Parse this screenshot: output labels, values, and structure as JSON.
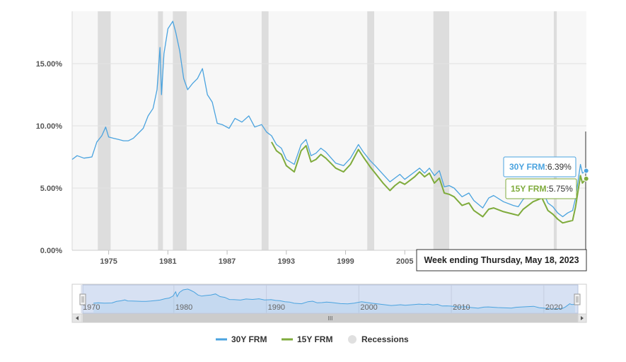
{
  "colors": {
    "series_30y": "#4aa3df",
    "series_15y": "#7fab3c",
    "recession": "#dddddd",
    "plot_bg": "#f7f7f7",
    "navigator_mask": "#d7e1f3"
  },
  "tooltip": {
    "header": "Week ending Thursday, May 18, 2023",
    "items": [
      {
        "name": "30Y FRM",
        "value": "6.39%",
        "color": "#4aa3df"
      },
      {
        "name": "15Y FRM",
        "value": "5.75%",
        "color": "#7fab3c"
      }
    ]
  },
  "legend": [
    {
      "name": "30Y FRM",
      "type": "line",
      "color": "#4aa3df"
    },
    {
      "name": "15Y FRM",
      "type": "line",
      "color": "#7fab3c"
    },
    {
      "name": "Recessions",
      "type": "dot",
      "color": "#e0e0e0"
    }
  ],
  "navigator": {
    "labels": [
      "1970",
      "1980",
      "1990",
      "2000",
      "2010",
      "2020"
    ],
    "scroll_grip": "III"
  },
  "chart_data": {
    "type": "line",
    "title": "",
    "xlabel": "",
    "ylabel": "",
    "xlim": [
      1971.3,
      2023.4
    ],
    "ylim": [
      0,
      19.2
    ],
    "x_ticks": [
      1975,
      1981,
      1987,
      1993,
      1999,
      2005
    ],
    "x_tick_labels": [
      "1975",
      "1981",
      "1987",
      "1993",
      "1999",
      "2005"
    ],
    "y_ticks": [
      0,
      5,
      10,
      15
    ],
    "y_tick_labels": [
      "0.00%",
      "5.00%",
      "10.00%",
      "15.00%"
    ],
    "grid": "horizontal",
    "recessions": [
      [
        1973.9,
        1975.2
      ],
      [
        1980.0,
        1980.5
      ],
      [
        1981.5,
        1982.9
      ],
      [
        1990.5,
        1991.2
      ],
      [
        2001.2,
        2001.9
      ],
      [
        2007.9,
        2009.5
      ],
      [
        2020.1,
        2020.4
      ]
    ],
    "series": [
      {
        "name": "30Y FRM",
        "x": [
          1971.3,
          1971.8,
          1972.5,
          1973.3,
          1973.8,
          1974.3,
          1974.7,
          1975.0,
          1975.5,
          1976.0,
          1976.5,
          1977.0,
          1977.5,
          1978.0,
          1978.5,
          1979.0,
          1979.5,
          1979.9,
          1980.2,
          1980.35,
          1980.6,
          1981.0,
          1981.5,
          1981.8,
          1982.2,
          1982.6,
          1983.0,
          1983.5,
          1984.0,
          1984.5,
          1985.0,
          1985.5,
          1986.0,
          1986.5,
          1987.2,
          1987.8,
          1988.5,
          1989.2,
          1989.8,
          1990.5,
          1991.0,
          1991.5,
          1992.0,
          1992.5,
          1993.0,
          1993.8,
          1994.5,
          1995.0,
          1995.5,
          1996.0,
          1996.5,
          1997.0,
          1998.0,
          1998.8,
          1999.5,
          2000.3,
          2000.8,
          2001.5,
          2002.0,
          2002.8,
          2003.5,
          2004.0,
          2004.5,
          2005.0,
          2006.0,
          2006.5,
          2007.0,
          2007.5,
          2008.0,
          2008.5,
          2009.0,
          2009.5,
          2010.0,
          2010.8,
          2011.5,
          2012.0,
          2012.9,
          2013.5,
          2014.0,
          2015.0,
          2016.0,
          2016.5,
          2017.0,
          2018.0,
          2018.9,
          2019.5,
          2020.0,
          2020.5,
          2021.0,
          2021.5,
          2022.0,
          2022.3,
          2022.8,
          2023.0,
          2023.38
        ],
        "values": [
          7.3,
          7.6,
          7.4,
          7.5,
          8.7,
          9.2,
          9.9,
          9.1,
          9.0,
          8.9,
          8.8,
          8.8,
          9.0,
          9.4,
          9.8,
          10.8,
          11.4,
          12.9,
          16.3,
          12.5,
          15.8,
          17.8,
          18.4,
          17.5,
          16.0,
          13.8,
          12.9,
          13.4,
          13.8,
          14.6,
          12.5,
          11.9,
          10.2,
          10.1,
          9.8,
          10.6,
          10.3,
          10.8,
          9.9,
          10.1,
          9.5,
          9.2,
          8.5,
          8.2,
          7.3,
          6.9,
          8.5,
          8.9,
          7.6,
          7.8,
          8.2,
          7.9,
          7.0,
          6.8,
          7.4,
          8.5,
          7.9,
          7.2,
          6.8,
          6.1,
          5.5,
          5.8,
          6.1,
          5.7,
          6.3,
          6.6,
          6.2,
          6.6,
          6.0,
          6.4,
          5.1,
          5.2,
          5.0,
          4.3,
          4.6,
          4.0,
          3.4,
          4.2,
          4.4,
          3.9,
          3.6,
          3.5,
          4.1,
          4.5,
          4.9,
          3.8,
          3.5,
          3.0,
          2.7,
          3.0,
          3.2,
          4.2,
          6.9,
          6.2,
          6.39
        ]
      },
      {
        "name": "15Y FRM",
        "x": [
          1991.5,
          1992.0,
          1992.5,
          1993.0,
          1993.8,
          1994.5,
          1995.0,
          1995.5,
          1996.0,
          1996.5,
          1997.0,
          1998.0,
          1998.8,
          1999.5,
          2000.3,
          2000.8,
          2001.5,
          2002.0,
          2002.8,
          2003.5,
          2004.0,
          2004.5,
          2005.0,
          2006.0,
          2006.5,
          2007.0,
          2007.5,
          2008.0,
          2008.5,
          2009.0,
          2009.5,
          2010.0,
          2010.8,
          2011.5,
          2012.0,
          2012.9,
          2013.5,
          2014.0,
          2015.0,
          2016.0,
          2016.5,
          2017.0,
          2018.0,
          2018.9,
          2019.5,
          2020.0,
          2020.5,
          2021.0,
          2021.5,
          2022.0,
          2022.3,
          2022.8,
          2023.0,
          2023.38
        ],
        "values": [
          8.7,
          8.0,
          7.7,
          6.8,
          6.3,
          8.0,
          8.4,
          7.1,
          7.3,
          7.7,
          7.4,
          6.6,
          6.3,
          6.9,
          8.1,
          7.5,
          6.7,
          6.2,
          5.4,
          4.8,
          5.2,
          5.5,
          5.3,
          5.9,
          6.3,
          5.9,
          6.2,
          5.4,
          5.8,
          4.6,
          4.5,
          4.3,
          3.6,
          3.8,
          3.2,
          2.7,
          3.3,
          3.4,
          3.1,
          2.9,
          2.8,
          3.3,
          3.9,
          4.2,
          3.2,
          2.9,
          2.5,
          2.2,
          2.3,
          2.4,
          3.5,
          6.0,
          5.4,
          5.75
        ]
      }
    ]
  }
}
